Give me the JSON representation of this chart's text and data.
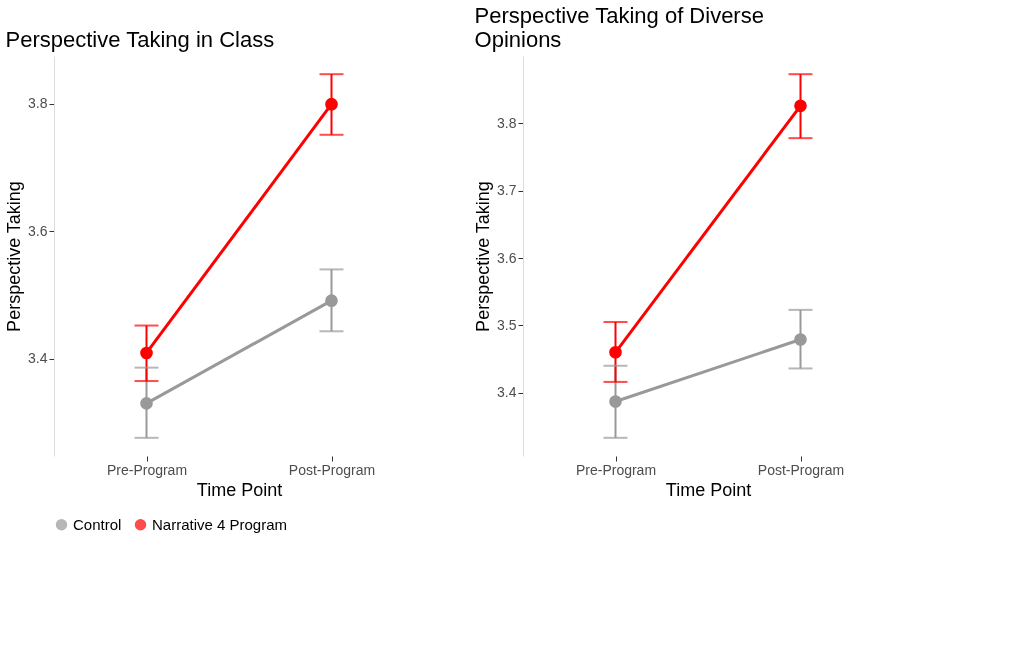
{
  "chart_data": [
    {
      "type": "line",
      "title": "Perspective Taking in Class",
      "xlabel": "Time Point",
      "ylabel": "Perspective Taking",
      "categories": [
        "Pre-Program",
        "Post-Program"
      ],
      "ylim": [
        3.2475,
        3.8745
      ],
      "yticks": [
        3.4,
        3.6,
        3.8
      ],
      "grid": false,
      "legend": "bottom",
      "marker": "circle",
      "line_style": "solid",
      "series": [
        {
          "name": "Control",
          "color": "#999999",
          "values": [
            3.33,
            3.491
          ],
          "errors": [
            [
              3.276,
              3.386
            ],
            [
              3.443,
              3.54
            ]
          ]
        },
        {
          "name": "Narrative 4 Program",
          "color": "#ff0000",
          "values": [
            3.409,
            3.799
          ],
          "errors": [
            [
              3.365,
              3.452
            ],
            [
              3.751,
              3.846
            ]
          ]
        }
      ]
    },
    {
      "type": "line",
      "title": "Perspective Taking of Diverse Opinions",
      "xlabel": "Time Point",
      "ylabel": "Perspective Taking",
      "categories": [
        "Pre-Program",
        "Post-Program"
      ],
      "ylim": [
        3.306,
        3.9
      ],
      "yticks": [
        3.4,
        3.5,
        3.6,
        3.7,
        3.8
      ],
      "grid": false,
      "legend": "bottom",
      "marker": "circle",
      "line_style": "solid",
      "series": [
        {
          "name": "Control",
          "color": "#999999",
          "values": [
            3.387,
            3.479
          ],
          "errors": [
            [
              3.333,
              3.44
            ],
            [
              3.436,
              3.523
            ]
          ]
        },
        {
          "name": "Narrative 4 Program",
          "color": "#ff0000",
          "values": [
            3.46,
            3.826
          ],
          "errors": [
            [
              3.416,
              3.505
            ],
            [
              3.778,
              3.873
            ]
          ]
        }
      ]
    }
  ]
}
